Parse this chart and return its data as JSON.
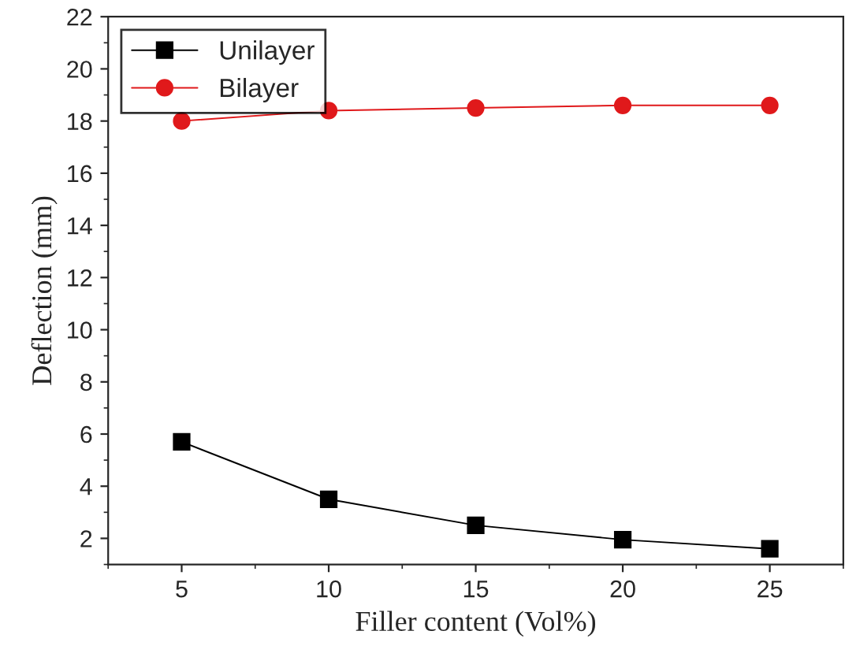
{
  "chart_data": {
    "type": "line",
    "xlabel": "Filler content (Vol%)",
    "ylabel": "Deflection (mm)",
    "x": [
      5,
      10,
      15,
      20,
      25
    ],
    "series": [
      {
        "name": "Unilayer",
        "color": "#000000",
        "marker": "square",
        "values": [
          5.7,
          3.5,
          2.5,
          1.95,
          1.6
        ]
      },
      {
        "name": "Bilayer",
        "color": "#e0191b",
        "marker": "circle",
        "values": [
          18.0,
          18.4,
          18.5,
          18.6,
          18.6
        ]
      }
    ],
    "xlim": [
      2.5,
      27.5
    ],
    "xticks": [
      5,
      10,
      15,
      20,
      25
    ],
    "ylim": [
      1,
      22
    ],
    "yticks": [
      2,
      4,
      6,
      8,
      10,
      12,
      14,
      16,
      18,
      20,
      22
    ],
    "grid": false,
    "legend": "top left",
    "line_style": "solid"
  }
}
